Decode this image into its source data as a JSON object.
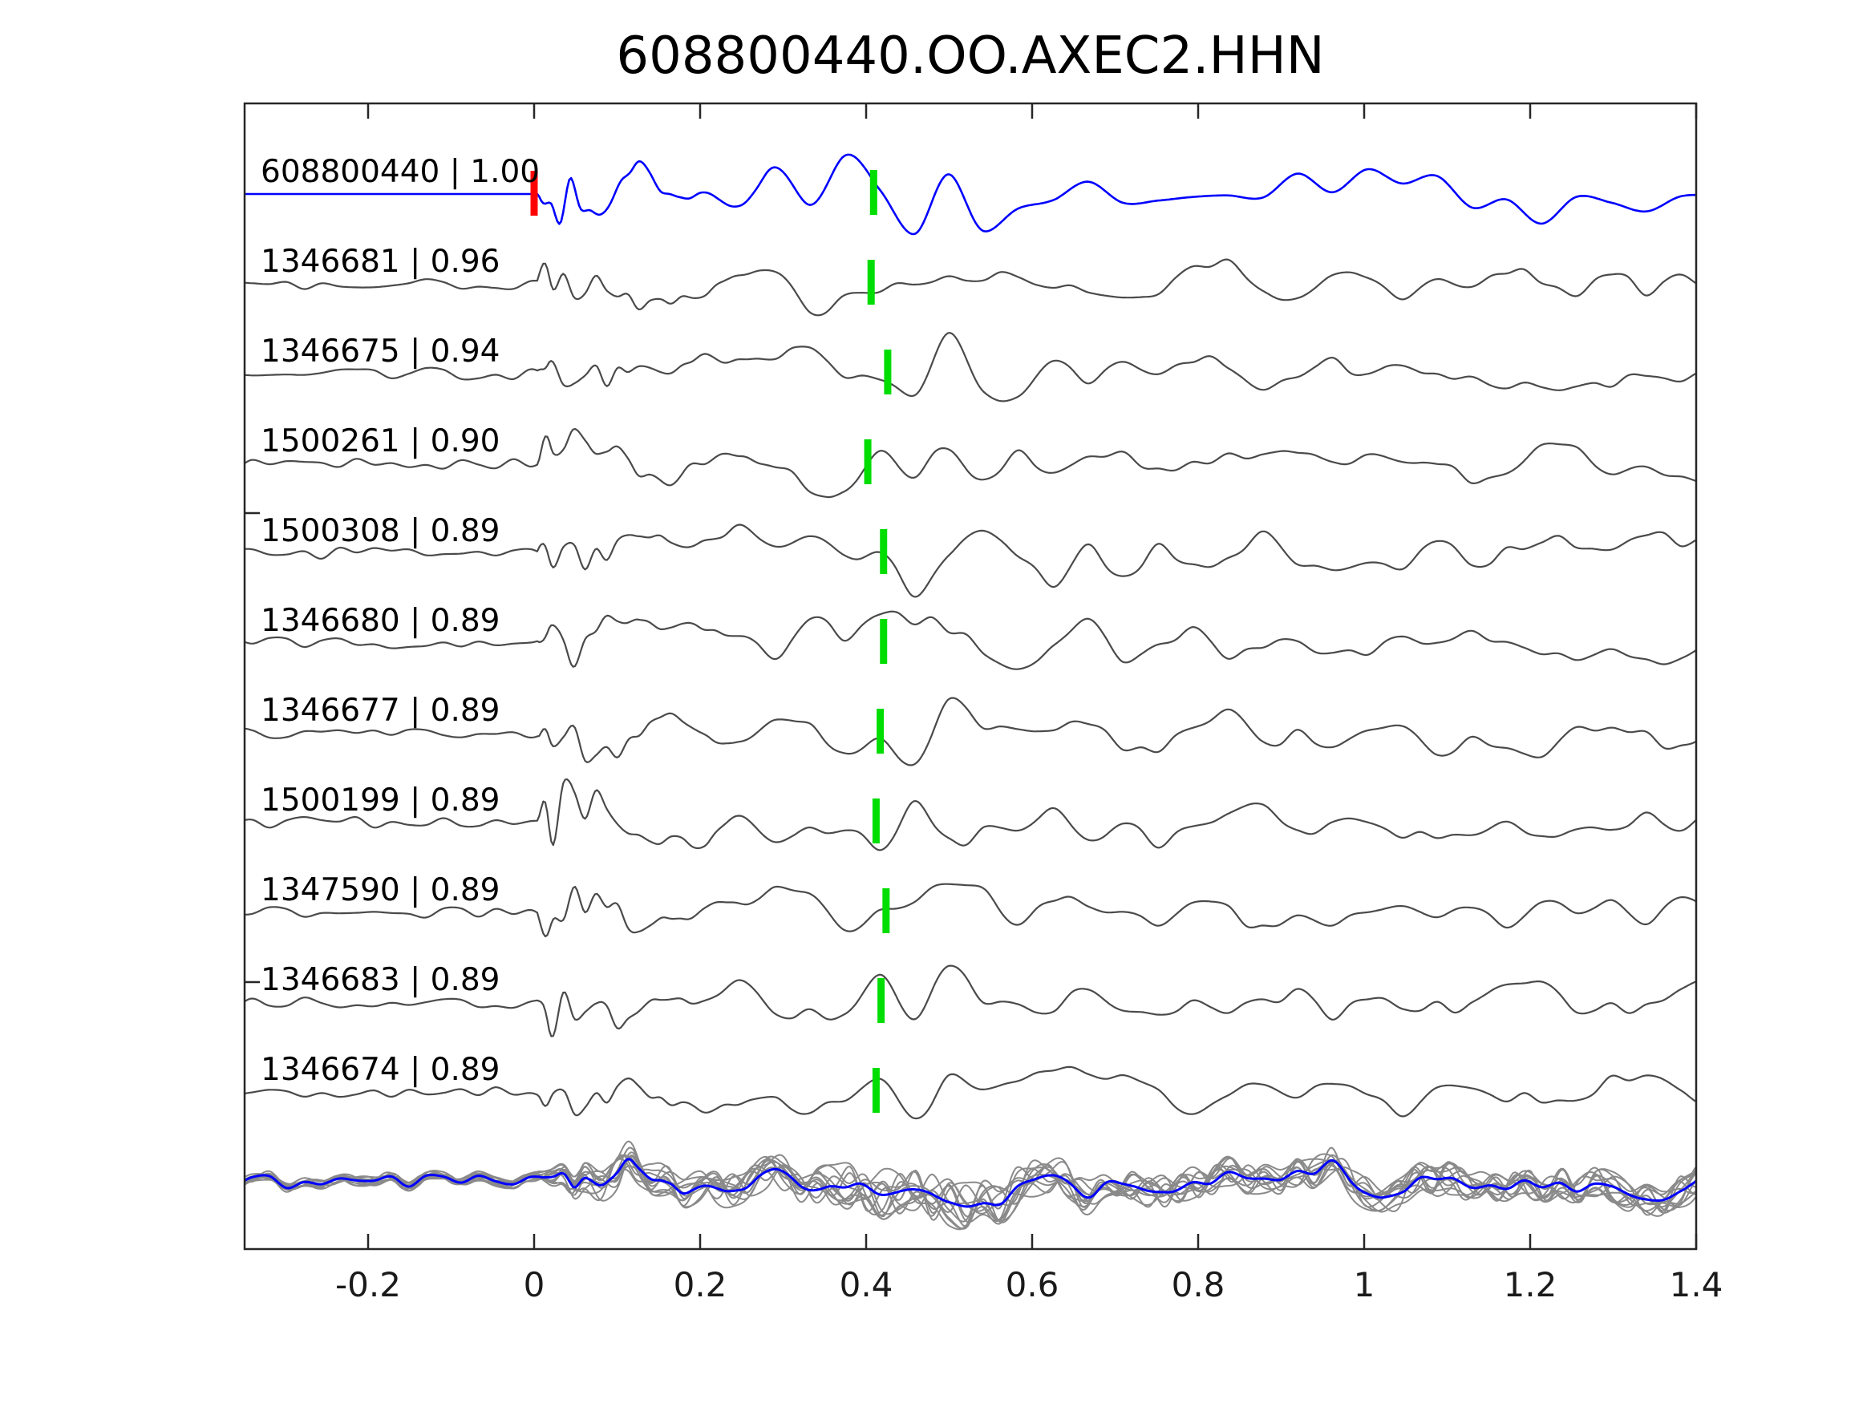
{
  "title": "608800440.OO.AXEC2.HHN",
  "chart_data": {
    "type": "line",
    "subtype": "seismogram-correlation-stack",
    "title": "608800440.OO.AXEC2.HHN",
    "xlabel": "",
    "ylabel": "",
    "xlim": [
      -0.349,
      1.4
    ],
    "grid": false,
    "legend": "none",
    "x_ticks": {
      "values": [
        -0.2,
        0,
        0.2,
        0.4,
        0.6,
        0.8,
        1,
        1.2,
        1.4
      ],
      "labels": [
        "-0.2",
        "0",
        "0.2",
        "0.4",
        "0.6",
        "0.8",
        "1",
        "1.2",
        "1.4"
      ]
    },
    "colors": {
      "template_trace": "#0000ff",
      "matched_trace": "#4a4a4a",
      "overlay_trace": "#8a8a8a",
      "pick_marker": "#00dd00",
      "onset_marker": "#ff0000",
      "axis": "#262626",
      "text": "#000000",
      "background": "#ffffff"
    },
    "traces": [
      {
        "label": "608800440 | 1.00",
        "event_id": "608800440",
        "correlation": "1.00",
        "pick_time": 0.409,
        "onset_time": 0.0,
        "is_template": true,
        "seed": 3
      },
      {
        "label": "1346681 | 0.96",
        "event_id": "1346681",
        "correlation": "0.96",
        "pick_time": 0.406,
        "is_template": false,
        "seed": 17
      },
      {
        "label": "1346675 | 0.94",
        "event_id": "1346675",
        "correlation": "0.94",
        "pick_time": 0.426,
        "is_template": false,
        "seed": 29
      },
      {
        "label": "1500261 | 0.90",
        "event_id": "1500261",
        "correlation": "0.90",
        "pick_time": 0.402,
        "is_template": false,
        "seed": 41
      },
      {
        "label": "1500308 | 0.89",
        "event_id": "1500308",
        "correlation": "0.89",
        "pick_time": 0.421,
        "is_template": false,
        "seed": 53
      },
      {
        "label": "1346680 | 0.89",
        "event_id": "1346680",
        "correlation": "0.89",
        "pick_time": 0.421,
        "is_template": false,
        "seed": 67
      },
      {
        "label": "1346677 | 0.89",
        "event_id": "1346677",
        "correlation": "0.89",
        "pick_time": 0.417,
        "is_template": false,
        "seed": 79
      },
      {
        "label": "1500199 | 0.89",
        "event_id": "1500199",
        "correlation": "0.89",
        "pick_time": 0.412,
        "is_template": false,
        "seed": 97
      },
      {
        "label": "1347590 | 0.89",
        "event_id": "1347590",
        "correlation": "0.89",
        "pick_time": 0.424,
        "is_template": false,
        "seed": 109
      },
      {
        "label": "1346683 | 0.89",
        "event_id": "1346683",
        "correlation": "0.89",
        "pick_time": 0.418,
        "is_template": false,
        "seed": 127
      },
      {
        "label": "1346674 | 0.89",
        "event_id": "1346674",
        "correlation": "0.89",
        "pick_time": 0.412,
        "is_template": false,
        "seed": 139
      }
    ],
    "overlay_stack": {
      "n_gray_traces": 12,
      "has_template_highlight": true,
      "description": "all matched waveforms aligned and superimposed, template in blue",
      "seed": 555,
      "member_seeds": [
        201,
        211,
        223,
        227,
        233,
        239,
        241,
        251,
        257,
        263,
        269,
        271
      ]
    }
  }
}
